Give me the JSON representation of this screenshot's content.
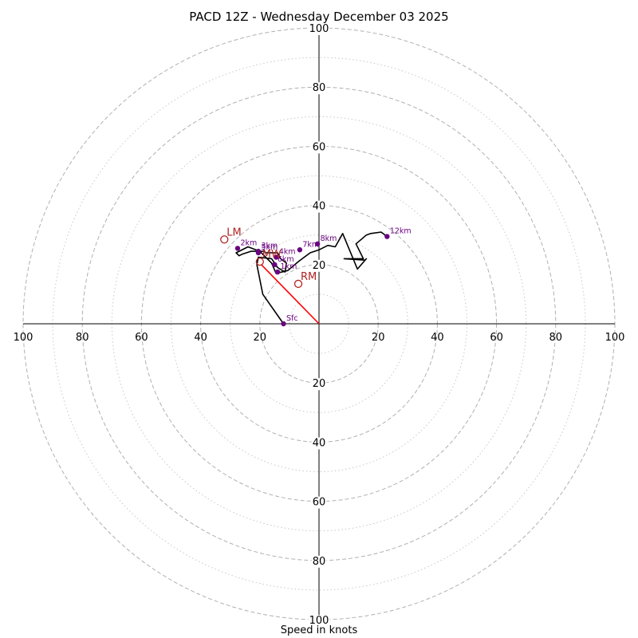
{
  "chart_data": {
    "type": "hodograph",
    "title": "PACD 12Z - Wednesday December 03 2025",
    "xlabel": "Speed in knots",
    "axis_range": [
      -100,
      100
    ],
    "ring_labels": [
      20,
      40,
      60,
      80,
      100
    ],
    "rings_dashed": [
      20,
      40,
      60,
      80,
      100
    ],
    "rings_dotted": [
      10,
      30,
      50,
      70,
      90
    ],
    "grid": true,
    "hodograph_trace": {
      "u": [
        -12,
        -19,
        -21,
        -20.5,
        -16,
        -14,
        -11.5,
        -11,
        -13,
        -14,
        -15,
        -18,
        -18.5,
        -23,
        -26,
        -27,
        -28,
        -24,
        -20,
        -16,
        -14.5,
        -10.5,
        -7,
        -3,
        0,
        3,
        5.5,
        8,
        13,
        16,
        15.5,
        8.5,
        15,
        12.5,
        16,
        17.5,
        21,
        23
      ],
      "v": [
        0,
        10,
        20,
        22.5,
        22,
        19,
        17.5,
        20.5,
        22,
        24,
        24,
        24,
        24.5,
        24.5,
        23.5,
        23,
        24,
        26,
        24.5,
        20.5,
        17,
        18,
        21,
        24,
        25,
        26.5,
        26,
        30.5,
        18.5,
        22,
        21.5,
        22,
        22,
        27,
        30,
        30.5,
        31,
        29.5
      ],
      "color": "#000000"
    },
    "height_markers": {
      "labels": [
        "Sfc",
        "1km",
        "2km",
        "3km",
        "4km",
        "5km",
        "6km",
        "7km",
        "8km",
        "12km"
      ],
      "u": [
        -12,
        -14,
        -27.5,
        -20.5,
        -14.5,
        -20.5,
        -15,
        -6.5,
        -0.5,
        23
      ],
      "v": [
        0,
        17.5,
        25.5,
        24.5,
        22.5,
        24,
        20,
        25,
        27,
        29.5
      ],
      "color": "#6a0080"
    },
    "storm_motion": {
      "RM": {
        "label": "RM",
        "u": -7,
        "v": 13.5
      },
      "LM": {
        "label": "LM",
        "u": -32,
        "v": 28.5
      },
      "MW": {
        "label": "MW",
        "u": -20,
        "v": 21
      },
      "shear_vector_end": {
        "u": -19.5,
        "v": 20
      },
      "color": "#b22222",
      "vector_color": "#ff0000"
    }
  }
}
